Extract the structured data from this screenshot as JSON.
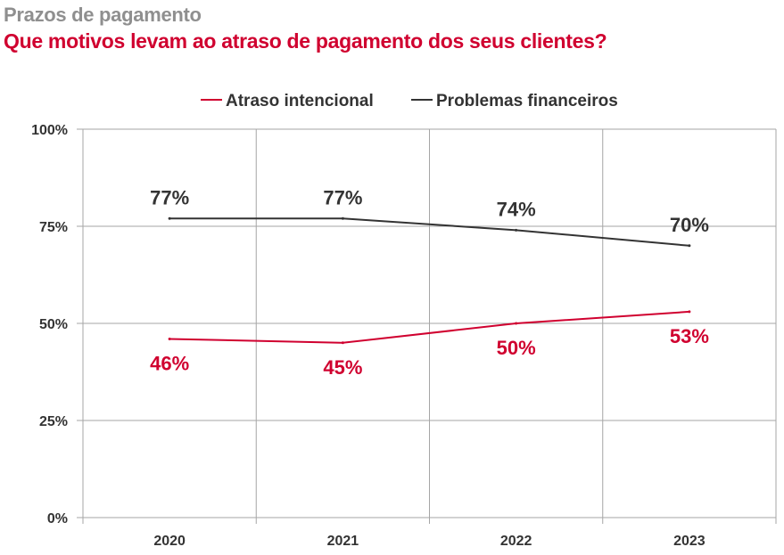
{
  "header": {
    "kicker": "Prazos de pagamento",
    "title": "Que motivos levam ao atraso de pagamento dos seus clientes?"
  },
  "chart_data": {
    "type": "line",
    "x": [
      "2020",
      "2021",
      "2022",
      "2023"
    ],
    "y_ticks": [
      "0%",
      "25%",
      "50%",
      "75%",
      "100%"
    ],
    "ylim": [
      0,
      100
    ],
    "grid": true,
    "legend_position": "top",
    "series": [
      {
        "name": "Atraso intencional",
        "color": "#d0002f",
        "values": [
          46,
          45,
          50,
          53
        ],
        "labels": [
          "46%",
          "45%",
          "50%",
          "53%"
        ]
      },
      {
        "name": "Problemas financeiros",
        "color": "#333333",
        "values": [
          77,
          77,
          74,
          70
        ],
        "labels": [
          "77%",
          "77%",
          "74%",
          "70%"
        ]
      }
    ]
  }
}
